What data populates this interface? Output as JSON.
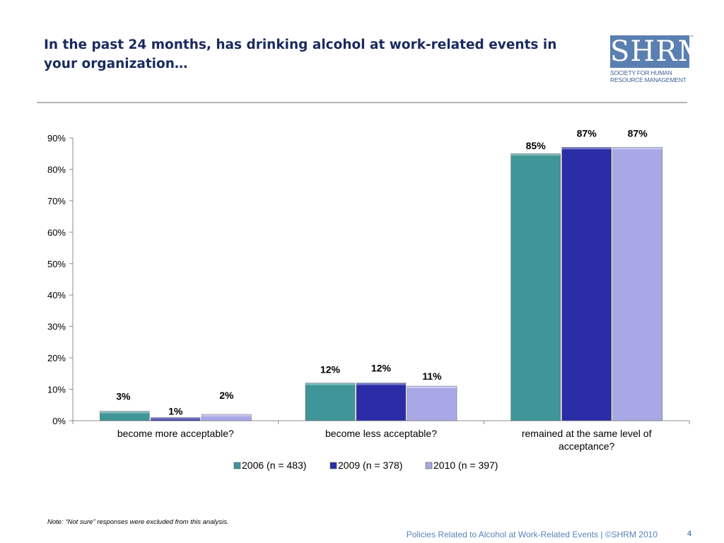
{
  "title": "In the past 24 months, has drinking alcohol at work-related events in your organization…",
  "logo": {
    "text": "SHRM",
    "tm": "™",
    "subtitle_line1": "Society for Human",
    "subtitle_line2": "Resource Management"
  },
  "note": "Note: “Not sure” responses were excluded from this analysis.",
  "footer": "Policies Related to Alcohol at Work-Related Events | ©SHRM 2010",
  "page_number": "4",
  "chart_data": {
    "type": "bar",
    "categories": [
      [
        "become more acceptable?"
      ],
      [
        "become less acceptable?"
      ],
      [
        "remained at the same level of",
        "acceptance?"
      ]
    ],
    "series": [
      {
        "name": "2006 (n = 483)",
        "values": [
          3,
          12,
          85
        ],
        "labels": [
          "3%",
          "12%",
          "85%"
        ],
        "color": "#3f9598"
      },
      {
        "name": "2009 (n = 378)",
        "values": [
          1,
          12,
          87
        ],
        "labels": [
          "1%",
          "12%",
          "87%"
        ],
        "color": "#2a2da6"
      },
      {
        "name": "2010 (n = 397)",
        "values": [
          2,
          11,
          87
        ],
        "labels": [
          "2%",
          "11%",
          "87%"
        ],
        "color": "#a9a8e6"
      }
    ],
    "ylim": [
      0,
      90
    ],
    "yticks": [
      "0%",
      "10%",
      "20%",
      "30%",
      "40%",
      "50%",
      "60%",
      "70%",
      "80%",
      "90%"
    ],
    "legend": "bottom",
    "grid": false
  }
}
